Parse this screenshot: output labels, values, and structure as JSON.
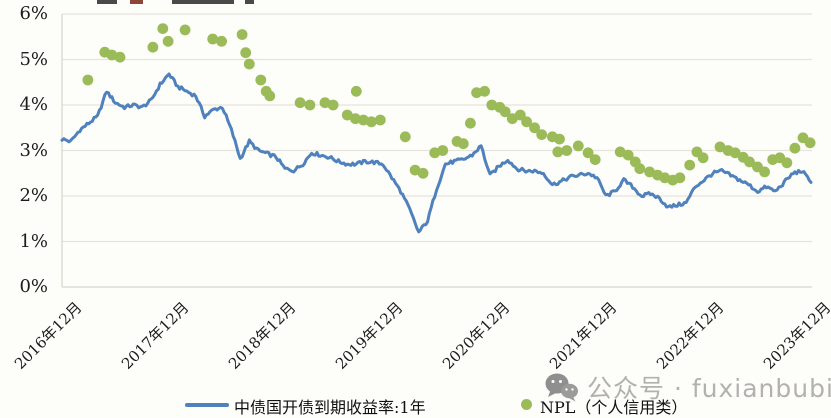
{
  "colors": {
    "line": "#4f81bd",
    "scatter": "#9bbb59",
    "gridline": "#e7e4db",
    "axis_border": "#d9d6cc",
    "watermark_text": "#b3b1ae",
    "watermark_icon": "#8f8f8f"
  },
  "top_fragments": [
    {
      "x": 97,
      "w": 20,
      "color": "#4a4a4a"
    },
    {
      "x": 130,
      "w": 13,
      "color": "#8a4638"
    },
    {
      "x": 172,
      "w": 62,
      "color": "#4a4a4a"
    },
    {
      "x": 245,
      "w": 9,
      "color": "#4a4a4a"
    }
  ],
  "chart_data": {
    "type": "line",
    "title": "",
    "xlabel": "",
    "ylabel": "",
    "ylim": [
      0,
      6
    ],
    "grid": "horizontal",
    "legend_position": "bottom",
    "axes": {
      "y_ticks": [
        "0%",
        "1%",
        "2%",
        "3%",
        "4%",
        "5%",
        "6%"
      ],
      "x_ticks": [
        "2016年12月",
        "2017年12月",
        "2018年12月",
        "2019年12月",
        "2020年12月",
        "2021年12月",
        "2022年12月",
        "2023年12月"
      ],
      "x_unit": "months since 2016-12"
    },
    "series": [
      {
        "name": "中债国开债到期收益率:1年",
        "type": "line",
        "color": "#4f81bd",
        "start_month": 0,
        "monthly_values": [
          3.25,
          3.2,
          3.45,
          3.6,
          3.75,
          4.3,
          4.05,
          3.95,
          4.0,
          3.95,
          4.1,
          4.45,
          4.68,
          4.4,
          4.3,
          4.2,
          3.75,
          3.9,
          3.95,
          3.45,
          2.82,
          3.2,
          3.0,
          2.93,
          2.86,
          2.6,
          2.56,
          2.7,
          2.95,
          2.9,
          2.85,
          2.76,
          2.7,
          2.7,
          2.76,
          2.74,
          2.7,
          2.4,
          2.1,
          1.7,
          1.2,
          1.45,
          2.15,
          2.7,
          2.76,
          2.8,
          2.9,
          3.1,
          2.45,
          2.65,
          2.8,
          2.6,
          2.55,
          2.55,
          2.5,
          2.25,
          2.32,
          2.42,
          2.46,
          2.5,
          2.4,
          2.0,
          2.1,
          2.35,
          2.2,
          2.0,
          2.05,
          1.95,
          1.75,
          1.8,
          1.85,
          2.2,
          2.35,
          2.5,
          2.55,
          2.45,
          2.35,
          2.25,
          2.1,
          2.2,
          2.1,
          2.3,
          2.5,
          2.55,
          2.3
        ]
      },
      {
        "name": "NPL（个人信用类）",
        "type": "scatter",
        "color": "#9bbb59",
        "points": [
          [
            2.9,
            4.55
          ],
          [
            4.8,
            5.16
          ],
          [
            5.6,
            5.1
          ],
          [
            6.5,
            5.05
          ],
          [
            10.2,
            5.27
          ],
          [
            11.3,
            5.68
          ],
          [
            11.9,
            5.4
          ],
          [
            13.8,
            5.65
          ],
          [
            16.9,
            5.45
          ],
          [
            17.9,
            5.4
          ],
          [
            20.2,
            5.55
          ],
          [
            20.6,
            5.15
          ],
          [
            21.0,
            4.9
          ],
          [
            22.3,
            4.55
          ],
          [
            22.9,
            4.3
          ],
          [
            23.3,
            4.2
          ],
          [
            26.7,
            4.05
          ],
          [
            27.8,
            4.0
          ],
          [
            29.5,
            4.05
          ],
          [
            30.4,
            4.0
          ],
          [
            32.0,
            3.78
          ],
          [
            32.9,
            3.7
          ],
          [
            33.0,
            4.3
          ],
          [
            33.8,
            3.67
          ],
          [
            34.7,
            3.63
          ],
          [
            35.7,
            3.67
          ],
          [
            38.5,
            3.3
          ],
          [
            39.6,
            2.57
          ],
          [
            40.5,
            2.5
          ],
          [
            41.8,
            2.95
          ],
          [
            42.7,
            3.0
          ],
          [
            44.3,
            3.2
          ],
          [
            45.0,
            3.15
          ],
          [
            45.8,
            3.6
          ],
          [
            46.5,
            4.27
          ],
          [
            47.4,
            4.3
          ],
          [
            48.2,
            4.0
          ],
          [
            49.1,
            3.95
          ],
          [
            49.7,
            3.85
          ],
          [
            50.5,
            3.7
          ],
          [
            51.4,
            3.78
          ],
          [
            52.1,
            3.63
          ],
          [
            53.0,
            3.5
          ],
          [
            53.8,
            3.35
          ],
          [
            55.0,
            3.3
          ],
          [
            55.6,
            2.97
          ],
          [
            55.8,
            3.25
          ],
          [
            56.6,
            3.0
          ],
          [
            57.9,
            3.1
          ],
          [
            59.0,
            2.95
          ],
          [
            59.8,
            2.8
          ],
          [
            62.6,
            2.97
          ],
          [
            63.5,
            2.9
          ],
          [
            64.3,
            2.75
          ],
          [
            64.8,
            2.6
          ],
          [
            65.9,
            2.53
          ],
          [
            66.8,
            2.46
          ],
          [
            67.6,
            2.4
          ],
          [
            68.5,
            2.35
          ],
          [
            69.3,
            2.4
          ],
          [
            70.4,
            2.68
          ],
          [
            71.2,
            2.97
          ],
          [
            71.9,
            2.84
          ],
          [
            73.8,
            3.08
          ],
          [
            74.7,
            3.0
          ],
          [
            75.5,
            2.95
          ],
          [
            76.4,
            2.85
          ],
          [
            77.1,
            2.75
          ],
          [
            78.0,
            2.64
          ],
          [
            78.8,
            2.53
          ],
          [
            79.7,
            2.8
          ],
          [
            80.5,
            2.84
          ],
          [
            81.3,
            2.73
          ],
          [
            82.2,
            3.05
          ],
          [
            83.1,
            3.28
          ],
          [
            83.9,
            3.17
          ]
        ]
      }
    ]
  },
  "legend": {
    "line_label": "中债国开债到期收益率:1年",
    "dot_label": "NPL（个人信用类）"
  },
  "watermark": {
    "text": "公众号 · fuxianbubin"
  }
}
